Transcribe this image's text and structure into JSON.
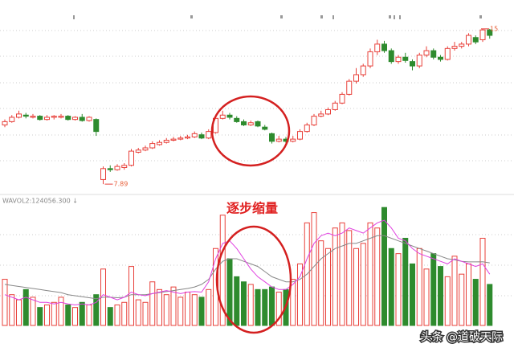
{
  "chart_data": {
    "type": "candlestick",
    "low_label": "7.89",
    "high_label": "15",
    "volume_label": "WAVOL2:124056.300 ↓",
    "annotation": "逐步缩量",
    "watermark": "头条 @道破天际",
    "ylim": [
      7.49,
      16.32
    ],
    "up_color": "#e8403a",
    "down_color": "#2e8b2e",
    "candles": [
      [
        10.6,
        10.75,
        10.85,
        10.5
      ],
      [
        10.75,
        10.95,
        11.05,
        10.7
      ],
      [
        10.95,
        11.1,
        11.25,
        10.9
      ],
      [
        11.05,
        11.0,
        11.15,
        10.9
      ],
      [
        10.95,
        11.0,
        11.1,
        10.9
      ],
      [
        11.0,
        10.85,
        11.05,
        10.8
      ],
      [
        10.85,
        10.95,
        11.05,
        10.8
      ],
      [
        10.95,
        11.0,
        11.05,
        10.85
      ],
      [
        10.95,
        11.0,
        11.1,
        10.9
      ],
      [
        11.0,
        10.85,
        11.05,
        10.8
      ],
      [
        10.85,
        10.95,
        11.0,
        10.8
      ],
      [
        10.95,
        10.8,
        11.1,
        10.75
      ],
      [
        10.8,
        10.95,
        11.0,
        10.75
      ],
      [
        10.85,
        10.3,
        10.9,
        10.1
      ],
      [
        8.1,
        8.6,
        8.7,
        7.89
      ],
      [
        8.6,
        8.55,
        8.75,
        8.45
      ],
      [
        8.55,
        8.7,
        8.8,
        8.5
      ],
      [
        8.65,
        8.75,
        8.85,
        8.55
      ],
      [
        8.75,
        9.4,
        9.5,
        8.7
      ],
      [
        9.35,
        9.45,
        9.55,
        9.3
      ],
      [
        9.45,
        9.55,
        9.65,
        9.4
      ],
      [
        9.55,
        9.75,
        9.85,
        9.5
      ],
      [
        9.7,
        9.8,
        9.9,
        9.65
      ],
      [
        9.8,
        9.9,
        10.0,
        9.75
      ],
      [
        9.9,
        9.95,
        10.05,
        9.85
      ],
      [
        9.95,
        10.0,
        10.1,
        9.9
      ],
      [
        10.0,
        10.05,
        10.15,
        9.95
      ],
      [
        10.05,
        10.2,
        10.3,
        10.0
      ],
      [
        10.15,
        10.0,
        10.25,
        9.95
      ],
      [
        10.0,
        10.3,
        10.4,
        9.95
      ],
      [
        10.25,
        10.9,
        11.0,
        10.2
      ],
      [
        10.9,
        11.05,
        11.25,
        10.85
      ],
      [
        11.05,
        10.95,
        11.15,
        10.85
      ],
      [
        10.9,
        10.75,
        11.0,
        10.7
      ],
      [
        10.75,
        10.6,
        10.85,
        10.55
      ],
      [
        10.6,
        10.7,
        10.8,
        10.55
      ],
      [
        10.75,
        10.55,
        10.8,
        10.5
      ],
      [
        10.5,
        10.4,
        10.6,
        10.35
      ],
      [
        10.2,
        9.85,
        10.25,
        9.75
      ],
      [
        9.85,
        9.95,
        10.1,
        9.8
      ],
      [
        9.95,
        9.85,
        10.05,
        9.75
      ],
      [
        9.85,
        9.95,
        10.1,
        9.8
      ],
      [
        9.95,
        10.3,
        10.4,
        9.9
      ],
      [
        10.3,
        10.6,
        10.7,
        10.25
      ],
      [
        10.6,
        11.0,
        11.1,
        10.55
      ],
      [
        11.0,
        11.1,
        11.25,
        10.95
      ],
      [
        11.1,
        11.3,
        11.4,
        11.05
      ],
      [
        11.3,
        11.6,
        11.7,
        11.25
      ],
      [
        11.6,
        12.0,
        12.1,
        11.55
      ],
      [
        12.0,
        12.6,
        12.7,
        11.95
      ],
      [
        12.6,
        12.9,
        13.2,
        12.5
      ],
      [
        12.9,
        13.3,
        13.4,
        12.8
      ],
      [
        13.3,
        13.95,
        14.1,
        13.2
      ],
      [
        13.95,
        14.3,
        14.5,
        13.8
      ],
      [
        14.3,
        14.0,
        14.45,
        13.9
      ],
      [
        14.0,
        13.5,
        14.1,
        13.4
      ],
      [
        13.5,
        13.7,
        13.8,
        13.4
      ],
      [
        13.7,
        13.55,
        13.9,
        13.45
      ],
      [
        13.5,
        13.3,
        13.6,
        13.1
      ],
      [
        13.3,
        13.8,
        13.9,
        13.2
      ],
      [
        13.8,
        14.0,
        14.2,
        13.7
      ],
      [
        14.0,
        13.7,
        14.1,
        13.6
      ],
      [
        13.7,
        13.6,
        13.8,
        13.5
      ],
      [
        13.6,
        14.1,
        14.2,
        13.55
      ],
      [
        14.1,
        14.2,
        14.4,
        14.0
      ],
      [
        14.2,
        14.3,
        14.4,
        14.1
      ],
      [
        14.3,
        14.7,
        14.8,
        14.2
      ],
      [
        14.6,
        14.4,
        14.7,
        14.3
      ],
      [
        14.5,
        14.95,
        15.0,
        14.4
      ],
      [
        14.95,
        14.7,
        15.0,
        14.55
      ]
    ],
    "vlim": [
      0,
      235000
    ],
    "volumes": [
      90000,
      60000,
      50000,
      70000,
      55000,
      35000,
      40000,
      45000,
      55000,
      40000,
      35000,
      45000,
      40000,
      60000,
      110000,
      35000,
      40000,
      45000,
      115000,
      50000,
      45000,
      85000,
      70000,
      60000,
      75000,
      55000,
      65000,
      60000,
      55000,
      70000,
      150000,
      215000,
      130000,
      95000,
      85000,
      80000,
      70000,
      70000,
      75000,
      65000,
      70000,
      90000,
      120000,
      200000,
      220000,
      165000,
      150000,
      190000,
      200000,
      185000,
      150000,
      160000,
      200000,
      190000,
      230000,
      150000,
      140000,
      170000,
      120000,
      150000,
      110000,
      140000,
      115000,
      95000,
      135000,
      100000,
      120000,
      90000,
      170000,
      80000
    ],
    "ma_series": [
      {
        "color": "#888888",
        "values": [
          80000,
          78000,
          76000,
          74000,
          72000,
          70000,
          68000,
          66000,
          64000,
          60000,
          58000,
          56000,
          54000,
          52000,
          55000,
          55000,
          54000,
          55000,
          60000,
          60000,
          60000,
          62000,
          64000,
          66000,
          68000,
          70000,
          72000,
          75000,
          80000,
          90000,
          110000,
          125000,
          130000,
          130000,
          125000,
          120000,
          115000,
          105000,
          95000,
          90000,
          85000,
          85000,
          90000,
          100000,
          115000,
          130000,
          140000,
          150000,
          155000,
          160000,
          160000,
          165000,
          170000,
          175000,
          175000,
          170000,
          165000,
          160000,
          155000,
          150000,
          145000,
          140000,
          135000,
          130000,
          128000,
          125000,
          124000,
          124000,
          124056,
          122000
        ]
      },
      {
        "color": "#e040e0",
        "values": [
          60000,
          55000,
          50000,
          55000,
          50000,
          45000,
          45000,
          42000,
          45000,
          42000,
          40000,
          42000,
          40000,
          45000,
          60000,
          55000,
          50000,
          55000,
          65000,
          60000,
          58000,
          62000,
          65000,
          68000,
          65000,
          62000,
          65000,
          66000,
          65000,
          85000,
          130000,
          160000,
          165000,
          150000,
          130000,
          110000,
          95000,
          85000,
          75000,
          70000,
          70000,
          80000,
          95000,
          130000,
          160000,
          175000,
          180000,
          175000,
          180000,
          190000,
          185000,
          180000,
          190000,
          200000,
          205000,
          190000,
          170000,
          165000,
          150000,
          140000,
          135000,
          130000,
          125000,
          120000,
          130000,
          125000,
          120000,
          115000,
          120000,
          100000
        ]
      }
    ]
  }
}
